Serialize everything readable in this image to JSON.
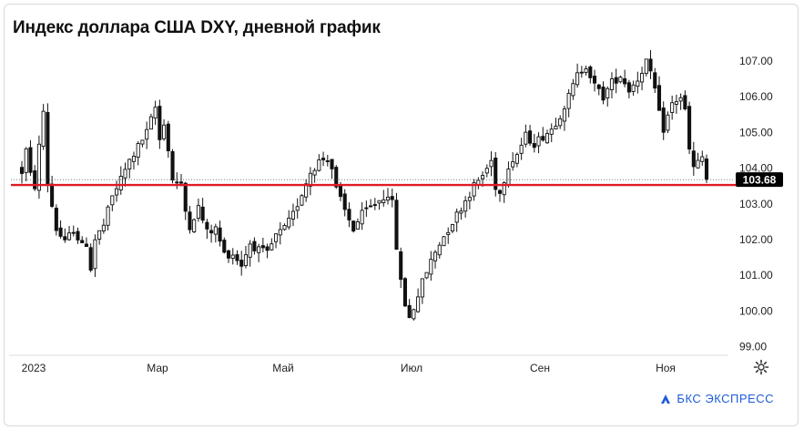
{
  "title": "Индекс доллара США DXY, дневной график",
  "brand": "БКС ЭКСПРЕСС",
  "colors": {
    "candle": "#111111",
    "level_line": "#e01b24",
    "price_tag_bg": "#000000",
    "price_tag_text": "#ffffff",
    "brand": "#1e5bd8",
    "axis": "#dddddd"
  },
  "icons": {
    "settings": "gear-icon",
    "brand": "bks-logo-icon"
  },
  "chart_data": {
    "type": "candlestick",
    "title": "Индекс доллара США DXY, дневной график",
    "y_axis_position": "right",
    "ylim": [
      98.8,
      107.7
    ],
    "y_ticks": [
      "107.00",
      "106.00",
      "105.00",
      "104.00",
      "103.00",
      "102.00",
      "101.00",
      "100.00",
      "99.00"
    ],
    "x_ticks": [
      "2023",
      "Мар",
      "Май",
      "Июл",
      "Сен",
      "Ноя"
    ],
    "current_price": 103.68,
    "current_price_label": "103.68",
    "horizontal_level": 103.53,
    "grid": false,
    "path": [
      [
        0,
        103.9
      ],
      [
        1,
        104.5
      ],
      [
        2,
        103.8
      ],
      [
        3,
        103.5
      ],
      [
        4,
        104.6
      ],
      [
        5,
        105.6
      ],
      [
        6,
        103.6
      ],
      [
        8,
        102.3
      ],
      [
        10,
        101.9
      ],
      [
        12,
        102.3
      ],
      [
        14,
        101.8
      ],
      [
        15,
        101.9
      ],
      [
        16,
        101.2
      ],
      [
        17,
        102.0
      ],
      [
        19,
        102.4
      ],
      [
        21,
        103.2
      ],
      [
        23,
        103.7
      ],
      [
        25,
        104.2
      ],
      [
        27,
        104.6
      ],
      [
        29,
        105.0
      ],
      [
        31,
        105.7
      ],
      [
        32,
        104.8
      ],
      [
        33,
        105.3
      ],
      [
        34,
        104.5
      ],
      [
        35,
        103.7
      ],
      [
        37,
        103.5
      ],
      [
        38,
        102.8
      ],
      [
        39,
        102.4
      ],
      [
        41,
        102.9
      ],
      [
        43,
        102.2
      ],
      [
        45,
        102.3
      ],
      [
        47,
        101.6
      ],
      [
        49,
        101.6
      ],
      [
        51,
        101.3
      ],
      [
        53,
        101.9
      ],
      [
        55,
        101.7
      ],
      [
        57,
        101.6
      ],
      [
        59,
        102.1
      ],
      [
        61,
        102.3
      ],
      [
        63,
        102.7
      ],
      [
        65,
        103.3
      ],
      [
        67,
        103.9
      ],
      [
        69,
        104.2
      ],
      [
        71,
        104.3
      ],
      [
        72,
        104.0
      ],
      [
        73,
        103.4
      ],
      [
        75,
        102.8
      ],
      [
        77,
        102.3
      ],
      [
        79,
        102.7
      ],
      [
        81,
        102.9
      ],
      [
        83,
        103.1
      ],
      [
        85,
        103.3
      ],
      [
        86,
        103.0
      ],
      [
        87,
        101.8
      ],
      [
        88,
        100.8
      ],
      [
        89,
        100.2
      ],
      [
        90,
        99.8
      ],
      [
        91,
        100.1
      ],
      [
        93,
        100.8
      ],
      [
        95,
        101.4
      ],
      [
        97,
        101.9
      ],
      [
        99,
        102.3
      ],
      [
        101,
        102.7
      ],
      [
        103,
        103.1
      ],
      [
        105,
        103.5
      ],
      [
        107,
        103.8
      ],
      [
        109,
        104.2
      ],
      [
        110,
        103.5
      ],
      [
        111,
        103.3
      ],
      [
        113,
        104.1
      ],
      [
        115,
        104.4
      ],
      [
        117,
        104.9
      ],
      [
        119,
        104.7
      ],
      [
        121,
        104.9
      ],
      [
        123,
        105.1
      ],
      [
        125,
        105.5
      ],
      [
        127,
        106.0
      ],
      [
        129,
        106.6
      ],
      [
        131,
        106.9
      ],
      [
        133,
        106.3
      ],
      [
        135,
        106.0
      ],
      [
        137,
        106.4
      ],
      [
        139,
        106.6
      ],
      [
        141,
        106.2
      ],
      [
        143,
        106.5
      ],
      [
        145,
        107.0
      ],
      [
        147,
        106.2
      ],
      [
        148,
        105.5
      ],
      [
        149,
        105.1
      ],
      [
        151,
        105.8
      ],
      [
        153,
        106.0
      ],
      [
        154,
        105.6
      ],
      [
        155,
        104.5
      ],
      [
        156,
        104.0
      ],
      [
        158,
        104.3
      ],
      [
        159,
        103.68
      ]
    ]
  }
}
